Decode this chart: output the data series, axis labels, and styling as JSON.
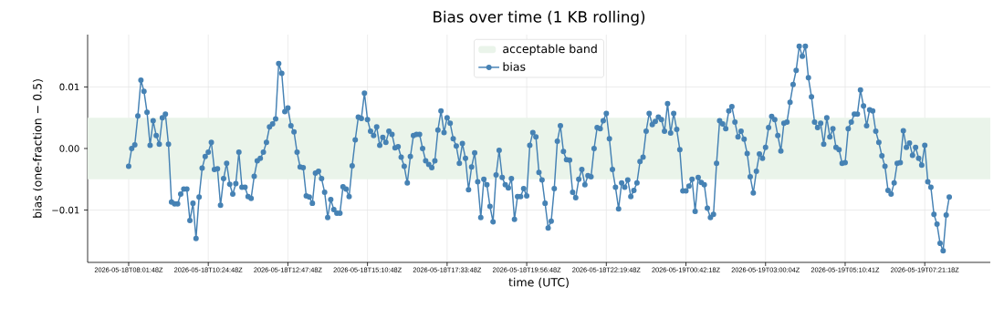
{
  "chart_data": {
    "type": "line",
    "title": "Bias over time (1 KB rolling)",
    "xlabel": "time (UTC)",
    "ylabel": "bias (one-fraction − 0.5)",
    "categories": [
      "2026-05-18T08:01:48Z",
      null,
      null,
      null,
      null,
      null,
      null,
      null,
      null,
      null,
      null,
      null,
      null,
      null,
      null,
      null,
      null,
      null,
      null,
      null,
      null,
      null,
      null,
      null,
      null,
      null,
      "2026-05-18T10:24:48Z",
      null,
      null,
      null,
      null,
      null,
      null,
      null,
      null,
      null,
      null,
      null,
      null,
      null,
      null,
      null,
      null,
      null,
      null,
      null,
      null,
      null,
      null,
      null,
      null,
      null,
      "2026-05-18T12:47:48Z",
      null,
      null,
      null,
      null,
      null,
      null,
      null,
      null,
      null,
      null,
      null,
      null,
      null,
      null,
      null,
      null,
      null,
      null,
      null,
      null,
      null,
      null,
      null,
      null,
      null,
      "2026-05-18T15:10:48Z",
      null,
      null,
      null,
      null,
      null,
      null,
      null,
      null,
      null,
      null,
      null,
      null,
      null,
      null,
      null,
      null,
      null,
      null,
      null,
      null,
      null,
      null,
      null,
      null,
      null,
      "2026-05-18T17:33:48Z",
      null,
      null,
      null,
      null,
      null,
      null,
      null,
      null,
      null,
      null,
      null,
      null,
      null,
      null,
      null,
      null,
      null,
      null,
      null,
      null,
      null,
      null,
      null,
      null,
      null,
      "2026-05-18T19:56:48Z",
      null,
      null,
      null,
      null,
      null,
      null,
      null,
      null,
      null,
      null,
      null,
      null,
      null,
      null,
      null,
      null,
      null,
      null,
      null,
      null,
      null,
      null,
      null,
      null,
      null,
      "2026-05-18T22:19:48Z",
      null,
      null,
      null,
      null,
      null,
      null,
      null,
      null,
      null,
      null,
      null,
      null,
      null,
      null,
      null,
      null,
      null,
      null,
      null,
      null,
      null,
      null,
      null,
      null,
      null,
      "2026-05-19T00:42:18Z",
      null,
      null,
      null,
      null,
      null,
      null,
      null,
      null,
      null,
      null,
      null,
      null,
      null,
      null,
      null,
      null,
      null,
      null,
      null,
      null,
      null,
      null,
      null,
      null,
      null,
      "2026-05-19T03:00:04Z",
      null,
      null,
      null,
      null,
      null,
      null,
      null,
      null,
      null,
      null,
      null,
      null,
      null,
      null,
      null,
      null,
      null,
      null,
      null,
      null,
      null,
      null,
      null,
      null,
      null,
      "2026-05-19T05:10:41Z",
      null,
      null,
      null,
      null,
      null,
      null,
      null,
      null,
      null,
      null,
      null,
      null,
      null,
      null,
      null,
      null,
      null,
      null,
      null,
      null,
      null,
      null,
      null,
      null,
      null,
      "2026-05-19T07:21:18Z",
      null,
      null,
      null,
      null,
      null,
      null,
      null,
      null
    ],
    "series": [
      {
        "name": "bias",
        "color": "#4682b4",
        "values": [
          -0.0029,
          0.0,
          0.0006,
          0.0053,
          0.0111,
          0.0093,
          0.0059,
          0.0005,
          0.0045,
          0.0021,
          0.0007,
          0.005,
          0.0056,
          0.0007,
          -0.0087,
          -0.009,
          -0.009,
          -0.0074,
          -0.0066,
          -0.0066,
          -0.0117,
          -0.0089,
          -0.0146,
          -0.0079,
          -0.0032,
          -0.0013,
          -0.0006,
          0.001,
          -0.0034,
          -0.0033,
          -0.0092,
          -0.0049,
          -0.0024,
          -0.0058,
          -0.0074,
          -0.0057,
          -0.0006,
          -0.0063,
          -0.0063,
          -0.0078,
          -0.0081,
          -0.0045,
          -0.002,
          -0.0016,
          -0.0006,
          0.001,
          0.0035,
          0.004,
          0.0048,
          0.0138,
          0.0122,
          0.006,
          0.0066,
          0.0037,
          0.0027,
          -0.0006,
          -0.003,
          -0.0031,
          -0.0077,
          -0.0079,
          -0.0089,
          -0.004,
          -0.0037,
          -0.0049,
          -0.0071,
          -0.0112,
          -0.0083,
          -0.0099,
          -0.0105,
          -0.0105,
          -0.0062,
          -0.0066,
          -0.0078,
          -0.0028,
          0.0014,
          0.0051,
          0.0049,
          0.009,
          0.0047,
          0.0028,
          0.0021,
          0.0035,
          0.0005,
          0.0018,
          0.001,
          0.0028,
          0.0023,
          0.0001,
          0.0003,
          -0.0014,
          -0.0029,
          -0.0056,
          -0.0013,
          0.0021,
          0.0023,
          0.0023,
          0.0,
          -0.002,
          -0.0026,
          -0.0031,
          -0.002,
          0.003,
          0.0061,
          0.0026,
          0.005,
          0.0041,
          0.0016,
          0.0004,
          -0.0024,
          0.0008,
          -0.0016,
          -0.0067,
          -0.003,
          -0.0007,
          -0.0054,
          -0.0112,
          -0.005,
          -0.0059,
          -0.0094,
          -0.0119,
          -0.0043,
          -0.0003,
          -0.0047,
          -0.0059,
          -0.0064,
          -0.0049,
          -0.0115,
          -0.0078,
          -0.0078,
          -0.0065,
          -0.0077,
          0.0005,
          0.0026,
          0.0019,
          -0.0039,
          -0.0051,
          -0.0089,
          -0.0129,
          -0.0118,
          -0.0065,
          0.0012,
          0.0037,
          -0.0005,
          -0.0018,
          -0.0019,
          -0.0071,
          -0.008,
          -0.005,
          -0.0034,
          -0.0059,
          -0.0044,
          -0.0046,
          0.0,
          0.0034,
          0.0032,
          0.0045,
          0.0057,
          0.0016,
          -0.0034,
          -0.0063,
          -0.0098,
          -0.0056,
          -0.0063,
          -0.0051,
          -0.0078,
          -0.0068,
          -0.0056,
          -0.0021,
          -0.0014,
          0.0028,
          0.0057,
          0.0039,
          0.0044,
          0.0051,
          0.0047,
          0.0028,
          0.0073,
          0.0025,
          0.0057,
          0.0031,
          -0.0002,
          -0.0069,
          -0.0069,
          -0.0061,
          -0.005,
          -0.0102,
          -0.0047,
          -0.0055,
          -0.0059,
          -0.0097,
          -0.0112,
          -0.0107,
          -0.0024,
          0.0045,
          0.004,
          0.0032,
          0.0061,
          0.0068,
          0.0043,
          0.0019,
          0.0028,
          0.0015,
          -0.0008,
          -0.0046,
          -0.0072,
          -0.0037,
          -0.0009,
          -0.0016,
          0.0002,
          0.0034,
          0.0052,
          0.0047,
          0.0021,
          -0.0004,
          0.0041,
          0.0043,
          0.0075,
          0.0104,
          0.0127,
          0.0166,
          0.015,
          0.0166,
          0.0115,
          0.0084,
          0.0043,
          0.0034,
          0.0041,
          0.0007,
          0.005,
          0.0019,
          0.0032,
          0.0002,
          -0.0002,
          -0.0024,
          -0.0023,
          0.0032,
          0.0043,
          0.0056,
          0.0056,
          0.0095,
          0.0069,
          0.0037,
          0.0063,
          0.0061,
          0.0028,
          0.001,
          -0.0012,
          -0.0029,
          -0.0068,
          -0.0074,
          -0.0056,
          -0.0024,
          -0.0023,
          0.0029,
          0.0002,
          0.0009,
          -0.0011,
          0.0002,
          -0.0016,
          -0.0027,
          0.0005,
          -0.0054,
          -0.0063,
          -0.0107,
          -0.0123,
          -0.0154,
          -0.0166,
          -0.0108,
          -0.0079
        ]
      }
    ],
    "ylim": [
      -0.0185,
      0.0185
    ],
    "yticks": [
      {
        "value": -0.01,
        "label": "−0.01"
      },
      {
        "value": 0,
        "label": "0.00"
      },
      {
        "value": 0.01,
        "label": "0.01"
      }
    ],
    "bands": [
      {
        "axis": "y",
        "from": -0.005,
        "to": 0.005,
        "label": "acceptable band",
        "color": "#eaf4ea"
      }
    ],
    "grid": true,
    "legend": "top",
    "marker": "circle"
  }
}
